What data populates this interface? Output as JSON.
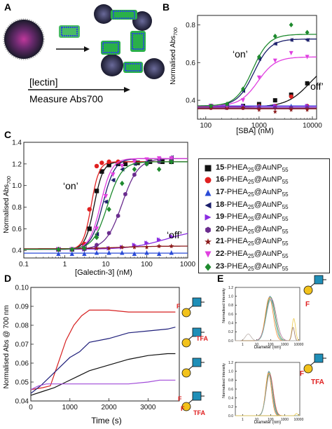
{
  "panels": {
    "A": {
      "letter": "A",
      "arrow_label_1": "[lectin]",
      "arrow_label_2": "Measure Abs700"
    },
    "B": {
      "letter": "B",
      "on_label": "‘on’",
      "off_label": "‘off’"
    },
    "C": {
      "letter": "C",
      "on_label": "‘on’",
      "off_label": "‘off’"
    },
    "D": {
      "letter": "D",
      "glyph_labels": [
        "F",
        "F",
        "TFA",
        "F",
        "F",
        "TFA"
      ]
    },
    "E": {
      "letter": "E",
      "glyph_labels": [
        "F",
        "F",
        "TFA"
      ]
    }
  },
  "legend": {
    "polymer": "PHEA",
    "polymer_sub": "25",
    "particle": "@AuNP",
    "particle_sub": "55",
    "items": [
      {
        "num": "15",
        "marker": "square",
        "color": "#111111"
      },
      {
        "num": "16",
        "marker": "circle",
        "color": "#e02020"
      },
      {
        "num": "17",
        "marker": "triangle-up",
        "color": "#2a4bd7"
      },
      {
        "num": "18",
        "marker": "triangle-left",
        "color": "#1b1f6b"
      },
      {
        "num": "19",
        "marker": "triangle-right",
        "color": "#8a2be2"
      },
      {
        "num": "20",
        "marker": "hexagon",
        "color": "#6a2c8e"
      },
      {
        "num": "21",
        "marker": "star",
        "color": "#8b1a1a"
      },
      {
        "num": "22",
        "marker": "triangle-down",
        "color": "#e040e0"
      },
      {
        "num": "23",
        "marker": "diamond",
        "color": "#1e8a2e"
      }
    ]
  },
  "chart_data": [
    {
      "panel": "B",
      "type": "scatter",
      "xlabel": "[SBA] (nM)",
      "ylabel": "Normalised Abs700",
      "x_scale": "log",
      "xlim": [
        70,
        12000
      ],
      "ylim": [
        0.3,
        0.85
      ],
      "xticks": [
        100,
        1000,
        10000
      ],
      "xtick_labels": [
        "100",
        "1000",
        "10000"
      ],
      "yticks": [
        0.4,
        0.6,
        0.8
      ],
      "ytick_labels": [
        "0.4",
        "0.6",
        "0.8"
      ],
      "series": [
        {
          "num": "15",
          "x": [
            125,
            250,
            500,
            1000,
            2000,
            4000,
            8000
          ],
          "y": [
            0.37,
            0.37,
            0.37,
            0.38,
            0.4,
            0.43,
            0.49
          ],
          "curve": {
            "base": 0.365,
            "top": 0.62,
            "ec50": 9000,
            "n": 2.0
          }
        },
        {
          "num": "16",
          "x": [
            125,
            250,
            500,
            1000,
            2000,
            4000,
            8000
          ],
          "y": [
            0.36,
            0.36,
            0.36,
            0.37,
            0.37,
            0.42,
            0.37
          ],
          "curve": {
            "base": 0.365,
            "top": 0.37,
            "ec50": 1000,
            "n": 1.5
          }
        },
        {
          "num": "17",
          "x": [
            125,
            250,
            500,
            1000,
            2000,
            4000,
            8000
          ],
          "y": [
            0.37,
            0.37,
            0.37,
            0.37,
            0.37,
            0.37,
            0.37
          ],
          "curve": {
            "base": 0.37,
            "top": 0.37,
            "ec50": 1000,
            "n": 1.5
          }
        },
        {
          "num": "18",
          "x": [
            125,
            250,
            500,
            1000,
            2000,
            4000,
            8000
          ],
          "y": [
            0.37,
            0.38,
            0.45,
            0.62,
            0.7,
            0.72,
            0.72
          ],
          "curve": {
            "base": 0.37,
            "top": 0.725,
            "ec50": 800,
            "n": 2.8
          }
        },
        {
          "num": "19",
          "x": [
            125,
            250,
            500,
            1000,
            2000,
            4000,
            8000
          ],
          "y": [
            0.37,
            0.36,
            0.37,
            0.36,
            0.37,
            0.36,
            0.37
          ],
          "curve": {
            "base": 0.367,
            "top": 0.367,
            "ec50": 1000,
            "n": 1.5
          }
        },
        {
          "num": "20",
          "x": [
            125,
            250,
            500,
            1000,
            2000,
            4000,
            8000
          ],
          "y": [
            0.36,
            0.36,
            0.36,
            0.36,
            0.36,
            0.36,
            0.36
          ],
          "curve": {
            "base": 0.36,
            "top": 0.36,
            "ec50": 1000,
            "n": 1.5
          }
        },
        {
          "num": "21",
          "x": [
            125,
            250,
            500,
            1000,
            2000,
            4000,
            8000
          ],
          "y": [
            0.36,
            0.36,
            0.36,
            0.35,
            0.34,
            0.35,
            0.35
          ],
          "curve": {
            "base": 0.355,
            "top": 0.355,
            "ec50": 1000,
            "n": 1.5
          }
        },
        {
          "num": "22",
          "x": [
            125,
            250,
            500,
            1000,
            2000,
            4000,
            8000
          ],
          "y": [
            0.37,
            0.37,
            0.4,
            0.52,
            0.61,
            0.65,
            0.63
          ],
          "curve": {
            "base": 0.37,
            "top": 0.63,
            "ec50": 950,
            "n": 2.6
          }
        },
        {
          "num": "23",
          "x": [
            125,
            250,
            500,
            1000,
            2000,
            4000,
            8000
          ],
          "y": [
            0.37,
            0.38,
            0.46,
            0.63,
            0.74,
            0.8,
            0.76
          ],
          "curve": {
            "base": 0.37,
            "top": 0.75,
            "ec50": 750,
            "n": 2.8
          }
        }
      ]
    },
    {
      "panel": "C",
      "type": "scatter",
      "xlabel": "[Galectin-3] (nM)",
      "ylabel": "Normalised Abs700",
      "x_scale": "log",
      "xlim": [
        0.1,
        1000
      ],
      "ylim": [
        0.33,
        1.4
      ],
      "xticks": [
        0.1,
        1,
        10,
        100,
        1000
      ],
      "xtick_labels": [
        "0.1",
        "1",
        "10",
        "100",
        "1000"
      ],
      "yticks": [
        0.4,
        0.6,
        0.8,
        1.0,
        1.2,
        1.4
      ],
      "ytick_labels": [
        "0.4",
        "0.6",
        "0.8",
        "1.0",
        "1.2",
        "1.4"
      ],
      "series": [
        {
          "num": "15",
          "x": [
            0.7,
            1.5,
            3,
            4,
            6,
            8,
            12,
            20,
            30,
            60,
            120,
            240,
            400
          ],
          "y": [
            0.41,
            0.41,
            0.44,
            0.6,
            0.95,
            1.13,
            1.19,
            1.2,
            1.2,
            1.21,
            1.22,
            1.22,
            1.22
          ],
          "curve": {
            "base": 0.41,
            "top": 1.22,
            "ec50": 5.2,
            "n": 4.0
          }
        },
        {
          "num": "16",
          "x": [
            0.7,
            1.5,
            3,
            4,
            6,
            8,
            12,
            20
          ],
          "y": [
            0.41,
            0.41,
            0.46,
            0.78,
            1.18,
            1.21,
            1.22,
            1.22
          ],
          "curve": {
            "base": 0.41,
            "top": 1.22,
            "ec50": 4.4,
            "n": 4.5
          }
        },
        {
          "num": "17",
          "x": [
            0.7,
            1.5,
            3,
            6,
            12,
            25,
            50,
            100,
            200,
            400
          ],
          "y": [
            0.37,
            0.37,
            0.37,
            0.38,
            0.38,
            0.38,
            0.37,
            0.38,
            0.37,
            0.38
          ],
          "curve": {
            "base": 0.375,
            "top": 0.375,
            "ec50": 10,
            "n": 1.5
          }
        },
        {
          "num": "18",
          "x": [
            0.7,
            1.5,
            3,
            6,
            10,
            15,
            25,
            50,
            100,
            200,
            400
          ],
          "y": [
            0.41,
            0.41,
            0.42,
            0.55,
            0.85,
            1.05,
            1.15,
            1.2,
            1.22,
            1.24,
            1.26
          ],
          "curve": {
            "base": 0.41,
            "top": 1.25,
            "ec50": 8.5,
            "n": 3.0
          }
        },
        {
          "num": "19",
          "x": [
            0.7,
            1.5,
            3,
            6,
            12,
            25,
            50,
            100,
            200,
            400
          ],
          "y": [
            0.41,
            0.41,
            0.41,
            0.42,
            0.42,
            0.43,
            0.45,
            0.47,
            0.5,
            0.53
          ],
          "curve": {
            "base": 0.41,
            "top": 0.6,
            "ec50": 300,
            "n": 1.0
          }
        },
        {
          "num": "20",
          "x": [
            0.7,
            1.5,
            3,
            6,
            12,
            20,
            30,
            50,
            100,
            200,
            400
          ],
          "y": [
            0.41,
            0.41,
            0.41,
            0.45,
            0.56,
            0.72,
            0.92,
            1.1,
            1.2,
            1.22,
            1.24
          ],
          "curve": {
            "base": 0.41,
            "top": 1.25,
            "ec50": 25,
            "n": 2.2
          }
        },
        {
          "num": "21",
          "x": [
            0.7,
            1.5,
            3,
            6,
            12,
            25,
            50,
            100,
            200,
            400
          ],
          "y": [
            0.41,
            0.41,
            0.42,
            0.42,
            0.42,
            0.43,
            0.43,
            0.43,
            0.44,
            0.44
          ],
          "curve": {
            "base": 0.415,
            "top": 0.44,
            "ec50": 20,
            "n": 1.0
          }
        },
        {
          "num": "22",
          "x": [
            0.7,
            1.5,
            3,
            6,
            10,
            15,
            25,
            50,
            100,
            200,
            400
          ],
          "y": [
            0.41,
            0.41,
            0.42,
            0.6,
            0.9,
            1.1,
            1.18,
            1.22,
            1.24,
            1.25,
            1.25
          ],
          "curve": {
            "base": 0.41,
            "top": 1.25,
            "ec50": 7.5,
            "n": 3.2
          }
        },
        {
          "num": "23",
          "x": [
            0.7,
            1.5,
            3,
            6,
            12,
            25,
            50,
            100,
            200,
            400
          ],
          "y": [
            0.41,
            0.41,
            0.42,
            0.52,
            0.78,
            1.02,
            1.15,
            1.2,
            1.15,
            1.22
          ],
          "curve": {
            "base": 0.41,
            "top": 1.22,
            "ec50": 11,
            "n": 2.5
          }
        }
      ]
    },
    {
      "panel": "D",
      "type": "line",
      "xlabel": "Time (s)",
      "ylabel": "Normalised Abs @ 700 nm",
      "xlim": [
        0,
        3800
      ],
      "ylim": [
        0.04,
        0.1
      ],
      "xticks": [
        0,
        1000,
        2000,
        3000
      ],
      "xtick_labels": [
        "0",
        "1000",
        "2000",
        "3000"
      ],
      "yticks": [
        0.04,
        0.05,
        0.06,
        0.07,
        0.08,
        0.09,
        0.1
      ],
      "ytick_labels": [
        "0.04",
        "0.05",
        "0.06",
        "0.07",
        "0.08",
        "0.09",
        "0.10"
      ],
      "series": [
        {
          "color": "#d62020",
          "x": [
            0,
            300,
            500,
            700,
            900,
            1100,
            1300,
            1500,
            2000,
            2500,
            3000,
            3200,
            3500,
            3700
          ],
          "y": [
            0.046,
            0.047,
            0.048,
            0.06,
            0.072,
            0.08,
            0.085,
            0.088,
            0.088,
            0.087,
            0.087,
            0.087,
            0.087,
            0.087
          ]
        },
        {
          "color": "#1e1e7a",
          "x": [
            0,
            250,
            500,
            750,
            1000,
            1250,
            1500,
            2000,
            2500,
            3000,
            3500,
            3700
          ],
          "y": [
            0.044,
            0.048,
            0.053,
            0.058,
            0.063,
            0.066,
            0.071,
            0.073,
            0.076,
            0.077,
            0.078,
            0.079
          ]
        },
        {
          "color": "#111111",
          "x": [
            0,
            300,
            600,
            900,
            1200,
            1500,
            2000,
            2500,
            3000,
            3500,
            3700
          ],
          "y": [
            0.043,
            0.045,
            0.047,
            0.05,
            0.053,
            0.056,
            0.059,
            0.062,
            0.064,
            0.065,
            0.065
          ]
        },
        {
          "color": "#a04ad8",
          "x": [
            0,
            200,
            400,
            600,
            1000,
            1500,
            2000,
            2500,
            3000,
            3300,
            3500,
            3700
          ],
          "y": [
            0.046,
            0.048,
            0.049,
            0.049,
            0.049,
            0.049,
            0.049,
            0.049,
            0.05,
            0.051,
            0.051,
            0.051
          ]
        }
      ]
    },
    {
      "panel": "E",
      "type": "line",
      "subplots": [
        {
          "xlabel": "Diameter (nm)",
          "ylabel": "Normalised Intensity",
          "x_scale": "log",
          "xlim": [
            0.3,
            12000
          ],
          "ylim": [
            0,
            1.2
          ],
          "xticks": [
            1,
            10,
            100,
            1000,
            10000
          ],
          "xtick_labels": [
            "1",
            "10",
            "100",
            "1000",
            "10000"
          ],
          "yticks": [
            0.0,
            0.2,
            0.4,
            0.6,
            0.8,
            1.0,
            1.2
          ],
          "ytick_labels": [
            "0.0",
            "0.2",
            "0.4",
            "0.6",
            "0.8",
            "1.0",
            "1.2"
          ],
          "series": [
            {
              "color": "#4e79a7",
              "peak": 90,
              "width": 0.3,
              "height": 1.0
            },
            {
              "color": "#59a14f",
              "peak": 100,
              "width": 0.32,
              "height": 0.98
            },
            {
              "color": "#f28e2b",
              "peak": 80,
              "width": 0.28,
              "height": 0.97
            },
            {
              "color": "#b07aa1",
              "peak": 110,
              "width": 0.35,
              "height": 0.95
            },
            {
              "color": "#76b7b2",
              "peak": 95,
              "width": 0.3,
              "height": 0.92
            },
            {
              "color": "#edc948",
              "peak": 4500,
              "width": 0.12,
              "height": 0.5
            },
            {
              "color": "#9c755f",
              "peak": 4000,
              "width": 0.1,
              "height": 0.3
            },
            {
              "color": "#bab0ab",
              "peak": 2.5,
              "width": 0.2,
              "height": 0.15
            }
          ]
        },
        {
          "xlabel": "Diameter (nm)",
          "ylabel": "Normalised Intensity",
          "x_scale": "log",
          "xlim": [
            0.3,
            12000
          ],
          "ylim": [
            0,
            1.2
          ],
          "xticks": [
            1,
            10,
            100,
            1000,
            10000
          ],
          "xtick_labels": [
            "1",
            "10",
            "100",
            "1000",
            "10000"
          ],
          "yticks": [
            0.0,
            0.2,
            0.4,
            0.6,
            0.8,
            1.0,
            1.2
          ],
          "ytick_labels": [
            "0.0",
            "0.2",
            "0.4",
            "0.6",
            "0.8",
            "1.0",
            "1.2"
          ],
          "series": [
            {
              "color": "#4e79a7",
              "peak": 75,
              "width": 0.22,
              "height": 1.0
            },
            {
              "color": "#59a14f",
              "peak": 80,
              "width": 0.24,
              "height": 0.98
            },
            {
              "color": "#f28e2b",
              "peak": 70,
              "width": 0.21,
              "height": 0.96
            },
            {
              "color": "#e15759",
              "peak": 85,
              "width": 0.25,
              "height": 0.94
            },
            {
              "color": "#76b7b2",
              "peak": 78,
              "width": 0.23,
              "height": 0.92
            },
            {
              "color": "#edc948",
              "peak": 7000,
              "width": 0.08,
              "height": 0.05
            }
          ]
        }
      ]
    }
  ]
}
